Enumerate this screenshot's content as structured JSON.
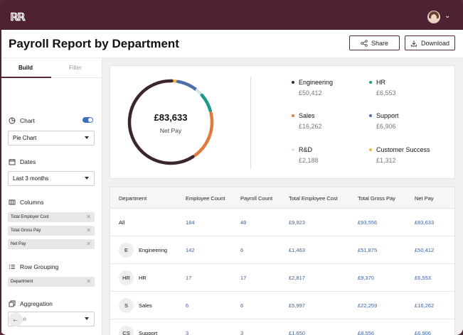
{
  "app": {
    "logo": "ℝℝ"
  },
  "header": {
    "title": "Payroll Report by Department",
    "share_label": "Share",
    "download_label": "Download"
  },
  "sidebar": {
    "tabs": [
      {
        "label": "Build"
      },
      {
        "label": "Filter"
      }
    ],
    "chart_label": "Chart",
    "chart_value": "Pie Chart",
    "dates_label": "Dates",
    "dates_value": "Last 3 months",
    "columns_label": "Columns",
    "columns": [
      "Total Employer Cost",
      "Total Gross Pay",
      "Net Pay"
    ],
    "row_grouping_label": "Row Grouping",
    "row_grouping": [
      "Department"
    ],
    "aggregation_label": "Aggregation",
    "aggregation_value": "None"
  },
  "summary": {
    "total": "£83,633",
    "total_label": "Net Pay"
  },
  "legend": [
    {
      "name": "Engineering",
      "value": "£50,412",
      "color": "#3a2530"
    },
    {
      "name": "HR",
      "value": "£6,553",
      "color": "#1f9a8a"
    },
    {
      "name": "Sales",
      "value": "£16,262",
      "color": "#e07a3f"
    },
    {
      "name": "Support",
      "value": "£6,906",
      "color": "#4d6ea8"
    },
    {
      "name": "R&D",
      "value": "£2,188",
      "color": "#d6e6e2"
    },
    {
      "name": "Customer Success",
      "value": "£1,312",
      "color": "#f2b53c"
    }
  ],
  "chart_data": {
    "type": "pie",
    "categories": [
      "Engineering",
      "Sales",
      "HR",
      "Support",
      "R&D",
      "Customer Success"
    ],
    "values": [
      50412,
      16262,
      6553,
      6906,
      2188,
      1312
    ],
    "colors": [
      "#3a2530",
      "#e07a3f",
      "#1f9a8a",
      "#4d6ea8",
      "#d6e6e2",
      "#f2b53c"
    ],
    "donut": true
  },
  "table": {
    "headers": [
      "Department",
      "Employee Count",
      "Payroll Count",
      "Total Employee Cost",
      "Total Gross Pay",
      "Net Pay"
    ],
    "rows": [
      {
        "initial": "",
        "dept": "All",
        "emp": "184",
        "payroll": "48",
        "cost": "£9,923",
        "gross": "£93,556",
        "net": "£83,633"
      },
      {
        "initial": "E",
        "dept": "Engineering",
        "emp": "142",
        "payroll": "6",
        "cost": "£1,463",
        "gross": "£51,875",
        "net": "£50,412"
      },
      {
        "initial": "HR",
        "dept": "HR",
        "emp": "17",
        "payroll": "17",
        "cost": "£2,817",
        "gross": "£9,370",
        "net": "£6,553"
      },
      {
        "initial": "S",
        "dept": "Sales",
        "emp": "6",
        "payroll": "6",
        "cost": "£5,997",
        "gross": "£22,259",
        "net": "£16,262"
      },
      {
        "initial": "CS",
        "dept": "Support",
        "emp": "3",
        "payroll": "3",
        "cost": "£1,650",
        "gross": "£8,556",
        "net": "£6,906"
      }
    ]
  },
  "colors": {
    "brand": "#4e2232",
    "link": "#3a5f9e",
    "toggle": "#3e6fbf"
  }
}
